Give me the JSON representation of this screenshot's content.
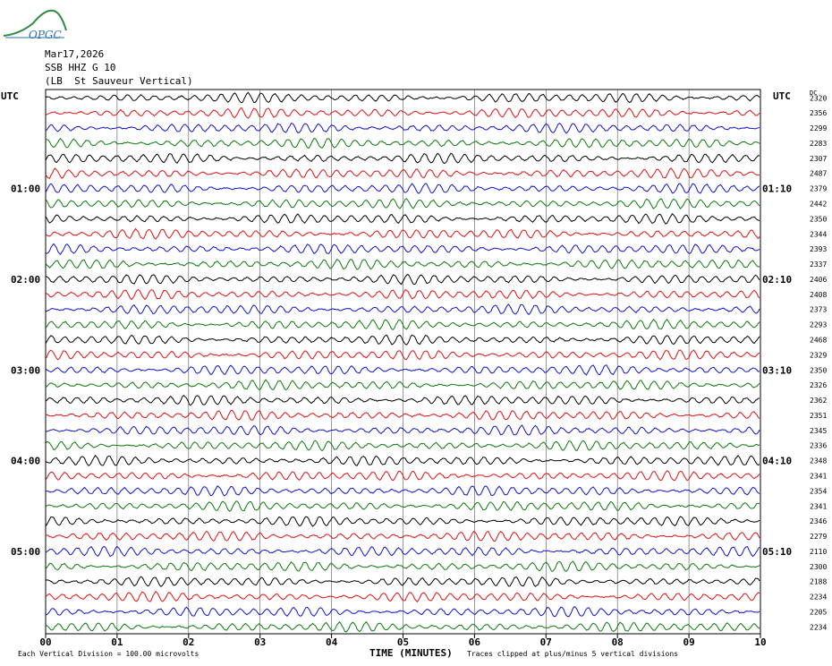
{
  "header": {
    "date": "Mar17,2026",
    "station": "SSB HHZ G 10",
    "location": "(LB  St Sauveur Vertical)",
    "logo_text": "OPGC"
  },
  "chart_data": {
    "type": "line",
    "title": "",
    "left_label": "UTC",
    "right_label": "UTC",
    "dc_label": "DC",
    "xlabel": "TIME (MINUTES)",
    "xlim": [
      0,
      10
    ],
    "x_ticks": [
      "00",
      "01",
      "02",
      "03",
      "04",
      "05",
      "06",
      "07",
      "08",
      "09",
      "10"
    ],
    "grid": true,
    "left_time_labels": [
      "01:00",
      "02:00",
      "03:00",
      "04:00",
      "05:00"
    ],
    "right_time_labels": [
      "01:10",
      "02:10",
      "03:10",
      "04:10",
      "05:10"
    ],
    "time_label_rows": [
      6,
      12,
      18,
      24,
      30
    ],
    "trace_colors": [
      "#000000",
      "#e01010",
      "#1010d0",
      "#0a7a0a"
    ],
    "dc_offsets": [
      2320,
      2356,
      2299,
      2283,
      2307,
      2487,
      2379,
      2442,
      2350,
      2344,
      2393,
      2337,
      2406,
      2408,
      2373,
      2293,
      2468,
      2329,
      2350,
      2326,
      2362,
      2351,
      2345,
      2336,
      2348,
      2341,
      2354,
      2341,
      2346,
      2279,
      2110,
      2300,
      2188,
      2234,
      2205,
      2234
    ],
    "footer_left": "Each Vertical Division =  100.00 microvolts",
    "footer_right": "Traces clipped at plus/minus 5 vertical divisions"
  }
}
